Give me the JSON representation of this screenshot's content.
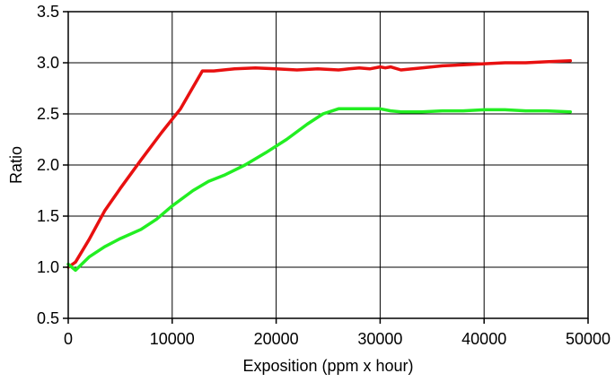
{
  "chart_data": {
    "type": "line",
    "title": "",
    "xlabel": "Exposition (ppm x hour)",
    "ylabel": "Ratio",
    "xlim": [
      0,
      50000
    ],
    "ylim": [
      0.5,
      3.5
    ],
    "grid": true,
    "x_ticks": [
      0,
      10000,
      20000,
      30000,
      40000,
      50000
    ],
    "x_tick_labels": [
      "0",
      "10000",
      "20000",
      "30000",
      "40000",
      "50000"
    ],
    "y_ticks": [
      0.5,
      1.0,
      1.5,
      2.0,
      2.5,
      3.0,
      3.5
    ],
    "y_tick_labels": [
      "0.5",
      "1.0",
      "1.5",
      "2.0",
      "2.5",
      "3.0",
      "3.5"
    ],
    "series": [
      {
        "color": "#e81010",
        "x": [
          0,
          700,
          2000,
          3500,
          5000,
          7000,
          9000,
          10800,
          12900,
          14000,
          16000,
          18000,
          20000,
          22000,
          24000,
          26000,
          27000,
          28000,
          29000,
          30000,
          30500,
          31000,
          32000,
          34000,
          36000,
          38000,
          40000,
          42000,
          44000,
          46000,
          48300
        ],
        "y": [
          1.0,
          1.05,
          1.27,
          1.55,
          1.77,
          2.05,
          2.32,
          2.55,
          2.92,
          2.92,
          2.94,
          2.95,
          2.94,
          2.93,
          2.94,
          2.93,
          2.94,
          2.95,
          2.94,
          2.96,
          2.95,
          2.96,
          2.93,
          2.95,
          2.97,
          2.98,
          2.99,
          3.0,
          3.0,
          3.01,
          3.02
        ]
      },
      {
        "color": "#22ee22",
        "x": [
          0,
          700,
          2000,
          3500,
          5000,
          7000,
          8500,
          10000,
          12000,
          13500,
          15000,
          17000,
          19000,
          21000,
          23000,
          24500,
          26000,
          28000,
          30000,
          31000,
          32000,
          34000,
          36000,
          38000,
          40000,
          42000,
          44000,
          46000,
          48300
        ],
        "y": [
          1.03,
          0.97,
          1.1,
          1.2,
          1.28,
          1.37,
          1.47,
          1.6,
          1.75,
          1.84,
          1.9,
          2.0,
          2.12,
          2.25,
          2.4,
          2.5,
          2.55,
          2.55,
          2.55,
          2.53,
          2.52,
          2.52,
          2.53,
          2.53,
          2.54,
          2.54,
          2.53,
          2.53,
          2.52
        ]
      }
    ]
  }
}
